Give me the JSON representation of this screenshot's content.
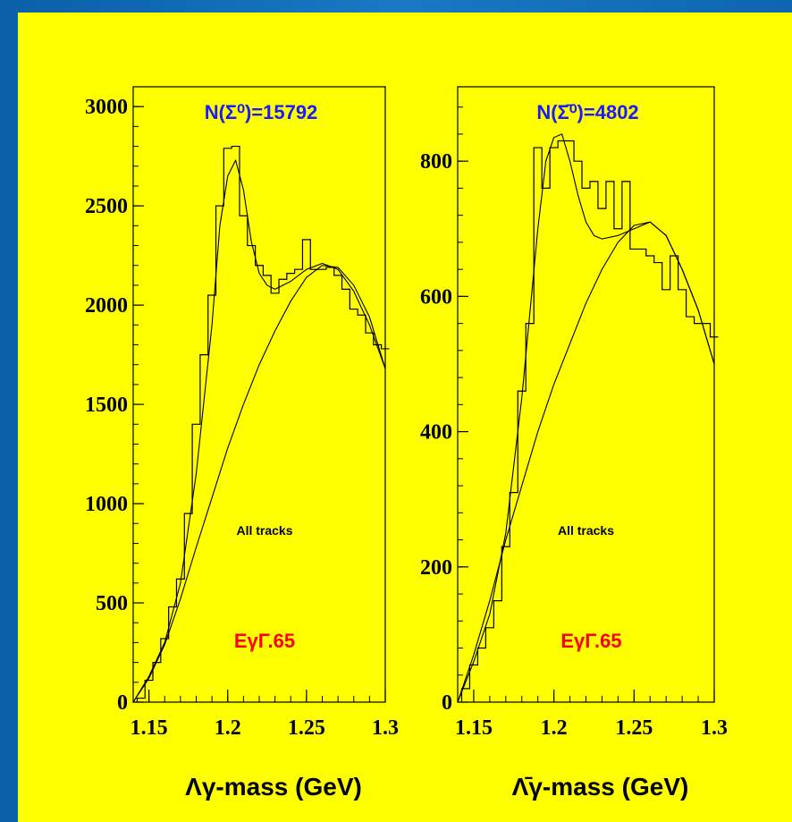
{
  "colors": {
    "background": "#ffff00",
    "frame": "#1a78c4",
    "count_label": "#1a1aff",
    "cut_label": "#ff0000",
    "histogram": "#000000"
  },
  "chart_data": [
    {
      "type": "line",
      "count_label": "N(Σ⁰)=15792",
      "note": "All tracks",
      "cut_label": "EγΓ.65",
      "xlabel": "Λγ-mass (GeV)",
      "xlim": [
        1.14,
        1.3
      ],
      "ylim": [
        0,
        3100
      ],
      "x_ticks": [
        "1.15",
        "1.2",
        "1.25",
        "1.3"
      ],
      "y_ticks": [
        "0",
        "500",
        "1000",
        "1500",
        "2000",
        "2500",
        "3000"
      ],
      "series": [
        {
          "style": "histogram",
          "x": [
            1.145,
            1.15,
            1.155,
            1.16,
            1.165,
            1.17,
            1.175,
            1.18,
            1.185,
            1.19,
            1.195,
            1.2,
            1.205,
            1.21,
            1.215,
            1.22,
            1.225,
            1.23,
            1.235,
            1.24,
            1.245,
            1.25,
            1.255,
            1.26,
            1.265,
            1.27,
            1.275,
            1.28,
            1.285,
            1.29,
            1.295,
            1.3
          ],
          "y": [
            20,
            110,
            200,
            320,
            480,
            620,
            950,
            1400,
            1750,
            2050,
            2500,
            2790,
            2800,
            2450,
            2300,
            2200,
            2150,
            2060,
            2130,
            2160,
            2180,
            2330,
            2180,
            2180,
            2190,
            2150,
            2080,
            1980,
            1950,
            1860,
            1800,
            1780
          ]
        },
        {
          "style": "fit",
          "x": [
            1.14,
            1.15,
            1.16,
            1.17,
            1.18,
            1.19,
            1.195,
            1.2,
            1.205,
            1.21,
            1.215,
            1.22,
            1.225,
            1.23,
            1.24,
            1.25,
            1.26,
            1.27,
            1.28,
            1.29,
            1.3
          ],
          "y": [
            0,
            130,
            300,
            600,
            1150,
            1900,
            2400,
            2650,
            2730,
            2580,
            2320,
            2160,
            2100,
            2080,
            2120,
            2180,
            2210,
            2180,
            2070,
            1900,
            1680
          ]
        },
        {
          "style": "background",
          "x": [
            1.14,
            1.15,
            1.16,
            1.17,
            1.18,
            1.19,
            1.2,
            1.21,
            1.22,
            1.23,
            1.24,
            1.25,
            1.26,
            1.27,
            1.28,
            1.29,
            1.3
          ],
          "y": [
            0,
            120,
            290,
            520,
            780,
            1030,
            1280,
            1500,
            1700,
            1870,
            2020,
            2140,
            2200,
            2190,
            2100,
            1940,
            1680
          ]
        }
      ]
    },
    {
      "type": "line",
      "count_label": "N(Σ̄⁰)=4802",
      "note": "All tracks",
      "cut_label": "EγΓ.65",
      "xlabel": "Λ̄γ-mass (GeV)",
      "xlim": [
        1.14,
        1.3
      ],
      "ylim": [
        0,
        910
      ],
      "x_ticks": [
        "1.15",
        "1.2",
        "1.25",
        "1.3"
      ],
      "y_ticks": [
        "0",
        "200",
        "400",
        "600",
        "800"
      ],
      "series": [
        {
          "style": "histogram",
          "x": [
            1.145,
            1.15,
            1.155,
            1.16,
            1.165,
            1.17,
            1.175,
            1.18,
            1.185,
            1.19,
            1.195,
            1.2,
            1.205,
            1.21,
            1.215,
            1.22,
            1.225,
            1.23,
            1.235,
            1.24,
            1.245,
            1.25,
            1.255,
            1.26,
            1.265,
            1.27,
            1.275,
            1.28,
            1.285,
            1.29,
            1.295,
            1.3
          ],
          "y": [
            20,
            55,
            80,
            110,
            150,
            230,
            310,
            460,
            560,
            820,
            760,
            820,
            830,
            830,
            800,
            760,
            770,
            730,
            770,
            700,
            770,
            670,
            670,
            660,
            650,
            610,
            660,
            610,
            570,
            560,
            560,
            540
          ]
        },
        {
          "style": "fit",
          "x": [
            1.14,
            1.15,
            1.16,
            1.17,
            1.18,
            1.19,
            1.195,
            1.2,
            1.205,
            1.21,
            1.215,
            1.22,
            1.225,
            1.23,
            1.24,
            1.25,
            1.26,
            1.27,
            1.28,
            1.29,
            1.3
          ],
          "y": [
            0,
            60,
            130,
            250,
            450,
            700,
            800,
            835,
            840,
            800,
            750,
            710,
            690,
            685,
            690,
            700,
            710,
            690,
            640,
            580,
            500
          ]
        },
        {
          "style": "background",
          "x": [
            1.14,
            1.15,
            1.16,
            1.17,
            1.18,
            1.19,
            1.2,
            1.21,
            1.22,
            1.23,
            1.24,
            1.25,
            1.26,
            1.27,
            1.28,
            1.29,
            1.3
          ],
          "y": [
            0,
            70,
            150,
            240,
            320,
            400,
            470,
            530,
            590,
            640,
            680,
            705,
            710,
            690,
            640,
            580,
            500
          ]
        }
      ]
    }
  ]
}
